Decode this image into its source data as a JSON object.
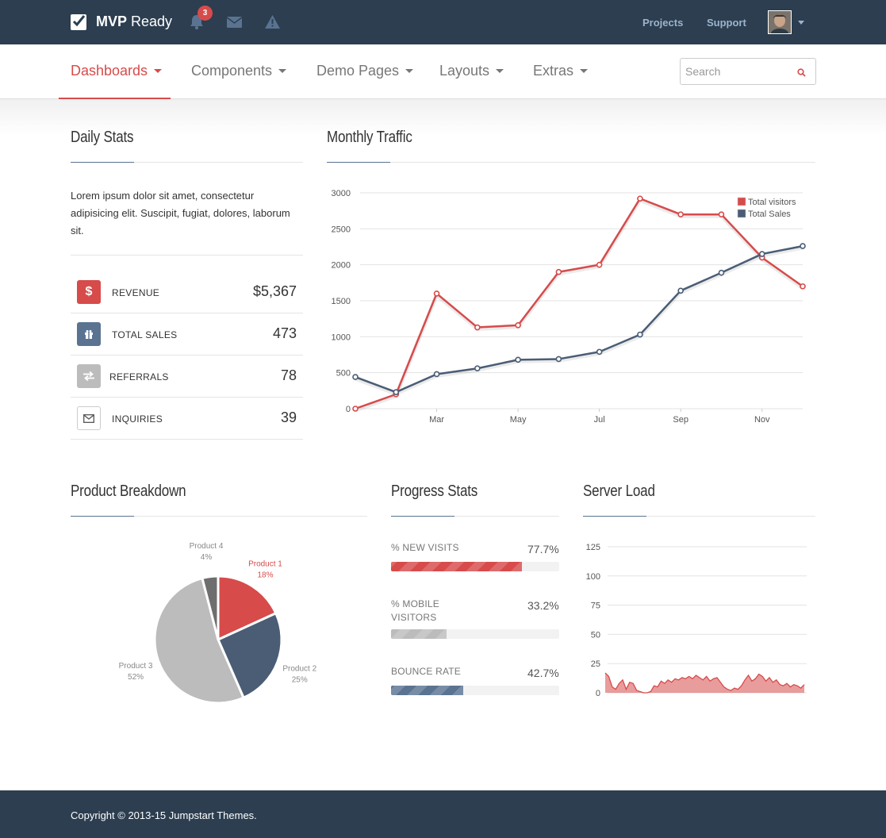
{
  "topbar": {
    "brand_bold": "MVP",
    "brand_rest": "Ready",
    "notification_count": "3",
    "links": [
      "Projects",
      "Support"
    ]
  },
  "nav": {
    "items": [
      "Dashboards",
      "Components",
      "Demo Pages",
      "Layouts",
      "Extras"
    ],
    "search_placeholder": "Search"
  },
  "daily_stats": {
    "title": "Daily Stats",
    "intro": "Lorem ipsum dolor sit amet, consectetur adipisicing elit. Suscipit, fugiat, dolores, laborum sit.",
    "rows": [
      {
        "label": "REVENUE",
        "value": "$5,367",
        "icon": "dollar-icon",
        "color": "#d74b4b"
      },
      {
        "label": "TOTAL SALES",
        "value": "473",
        "icon": "gift-icon",
        "color": "#5a7391"
      },
      {
        "label": "REFERRALS",
        "value": "78",
        "icon": "exchange-icon",
        "color": "#bcbcbc"
      },
      {
        "label": "INQUIRIES",
        "value": "39",
        "icon": "envelope-icon",
        "color": "#ffffff"
      }
    ]
  },
  "monthly_traffic": {
    "title": "Monthly Traffic"
  },
  "product_breakdown": {
    "title": "Product Breakdown"
  },
  "progress_stats": {
    "title": "Progress Stats",
    "items": [
      {
        "label": "% NEW VISITS",
        "value": "77.7%",
        "fraction": 0.777,
        "color": "#d74b4b"
      },
      {
        "label": "% MOBILE VISITORS",
        "value": "33.2%",
        "fraction": 0.332,
        "color": "#bcbcbc"
      },
      {
        "label": "BOUNCE RATE",
        "value": "42.7%",
        "fraction": 0.427,
        "color": "#5a7391"
      }
    ]
  },
  "server_load": {
    "title": "Server Load"
  },
  "footer": {
    "copyright": "Copyright © 2013-15 Jumpstart Themes."
  },
  "chart_data": [
    {
      "type": "line",
      "title": "Monthly Traffic",
      "x": [
        1,
        2,
        3,
        4,
        5,
        6,
        7,
        8,
        9,
        10,
        11,
        12
      ],
      "x_tick_labels": [
        "Mar",
        "May",
        "Jul",
        "Sep",
        "Nov"
      ],
      "x_tick_positions": [
        3,
        5,
        7,
        9,
        11
      ],
      "ylim": [
        0,
        3000
      ],
      "y_ticks": [
        "0",
        "500",
        "1000",
        "1500",
        "2000",
        "2500",
        "3000"
      ],
      "series": [
        {
          "name": "Total visitors",
          "color": "#d74b4b",
          "values": [
            0,
            200,
            1600,
            1130,
            1160,
            1900,
            2000,
            2920,
            2700,
            2700,
            2100,
            1700
          ]
        },
        {
          "name": "Total Sales",
          "color": "#4a5d75",
          "values": [
            440,
            230,
            480,
            560,
            680,
            690,
            790,
            1030,
            1640,
            1890,
            2150,
            2260
          ]
        }
      ],
      "legend": "top-right",
      "grid": true
    },
    {
      "type": "pie",
      "title": "Product Breakdown",
      "slices": [
        {
          "label": "Product 1",
          "percent_label": "18%",
          "value": 18,
          "color": "#d74b4b"
        },
        {
          "label": "Product 2",
          "percent_label": "25%",
          "value": 25,
          "color": "#4a5d75"
        },
        {
          "label": "Product 3",
          "percent_label": "52%",
          "value": 52,
          "color": "#bcbcbc"
        },
        {
          "label": "Product 4",
          "percent_label": "4%",
          "value": 4,
          "color": "#6e6e6e"
        }
      ]
    },
    {
      "type": "area",
      "title": "Server Load",
      "ylim": [
        0,
        125
      ],
      "y_ticks": [
        "0",
        "25",
        "50",
        "75",
        "100",
        "125"
      ],
      "color": "#d74b4b",
      "values": [
        17,
        14,
        5,
        3,
        8,
        11,
        3,
        9,
        8,
        2,
        1,
        0,
        0,
        1,
        6,
        5,
        10,
        8,
        11,
        9,
        12,
        11,
        13,
        12,
        14,
        12,
        15,
        13,
        11,
        14,
        10,
        12,
        13,
        9,
        5,
        3,
        2,
        4,
        3,
        6,
        11,
        15,
        10,
        12,
        16,
        14,
        10,
        13,
        9,
        11,
        7,
        6,
        8,
        5,
        7,
        6,
        4,
        7
      ]
    }
  ]
}
